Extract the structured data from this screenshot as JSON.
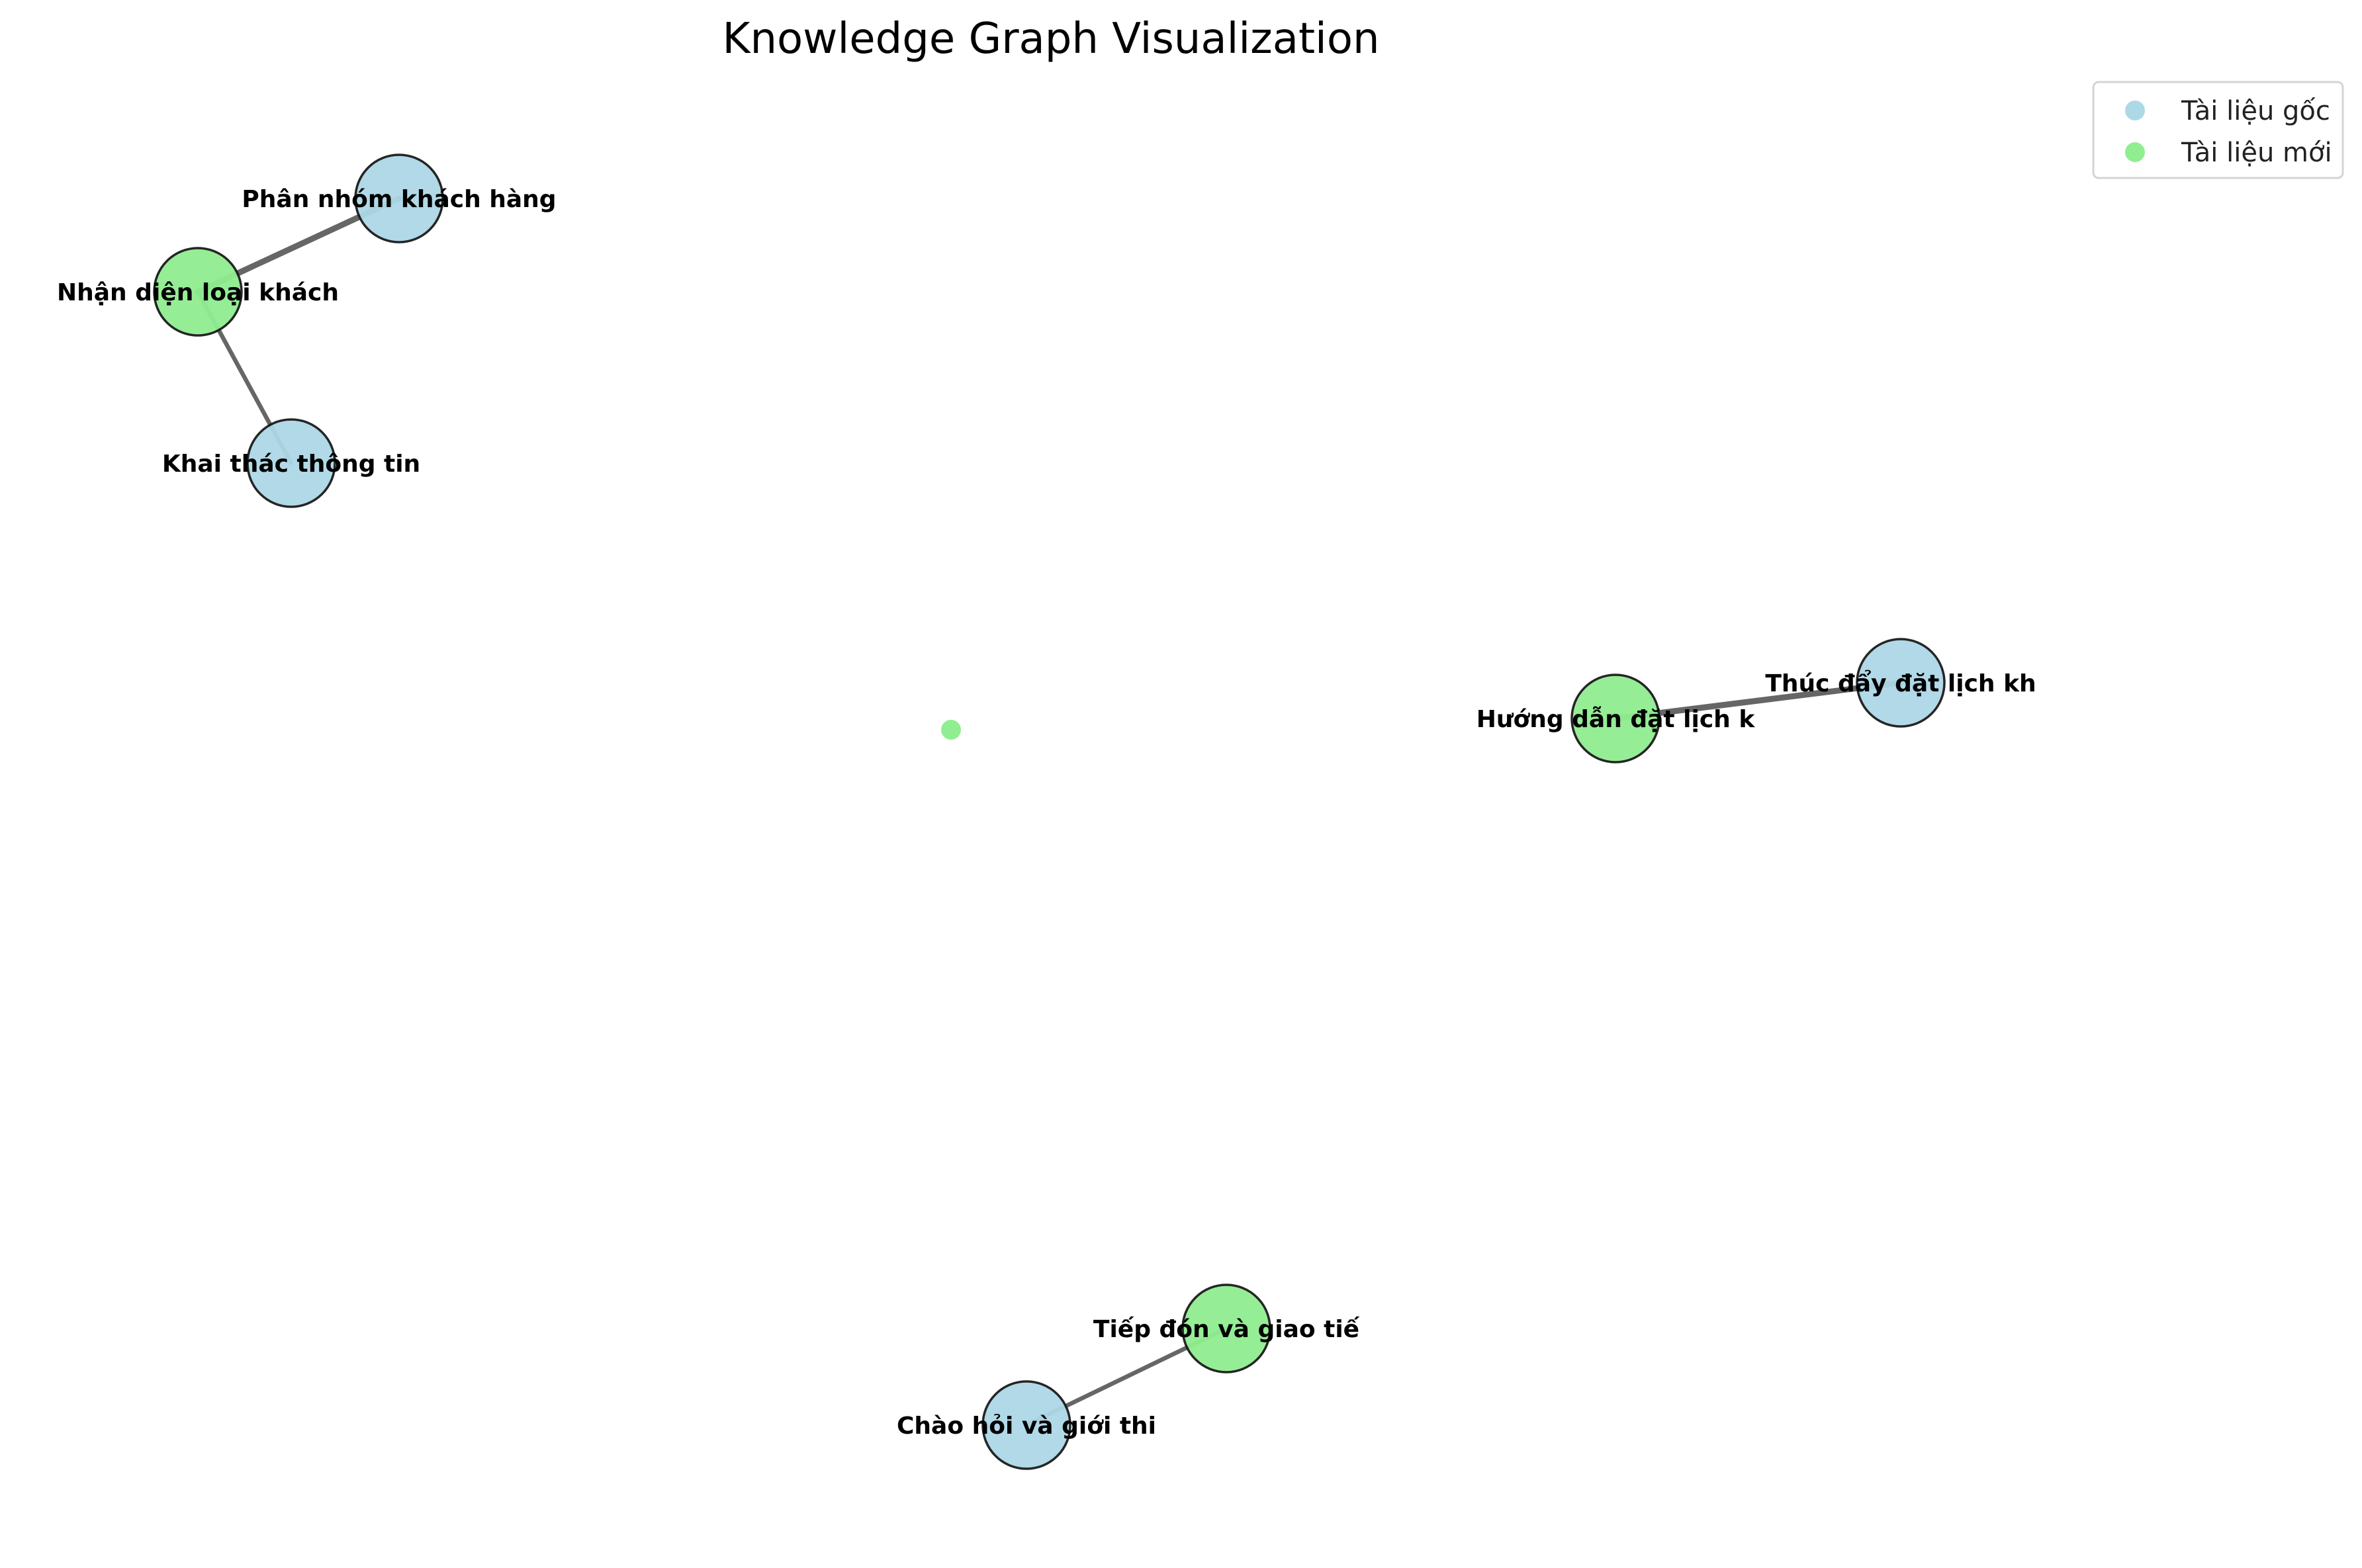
{
  "title": "Knowledge Graph Visualization",
  "colors": {
    "original": "#add8e6",
    "new": "#90ee90",
    "edge": "#666666"
  },
  "legend": {
    "items": [
      {
        "label": "Tài liệu gốc",
        "type": "original"
      },
      {
        "label": "Tài liệu mới",
        "type": "new"
      }
    ]
  },
  "graph": {
    "nodes": [
      {
        "id": "n1",
        "label": "Phân nhóm khách hàng",
        "type": "original"
      },
      {
        "id": "n2",
        "label": "Nhận diện loại khách",
        "type": "new"
      },
      {
        "id": "n3",
        "label": "Khai thác thông tin",
        "type": "original"
      },
      {
        "id": "n4",
        "label": "Hướng dẫn đặt lịch k",
        "type": "new"
      },
      {
        "id": "n5",
        "label": "Thúc đẩy đặt lịch kh",
        "type": "original"
      },
      {
        "id": "n6",
        "label": "",
        "type": "new",
        "small": true
      },
      {
        "id": "n7",
        "label": "Tiếp đón và giao tiế",
        "type": "new"
      },
      {
        "id": "n8",
        "label": "Chào hỏi và giới thi",
        "type": "original"
      }
    ],
    "edges": [
      {
        "source": "n2",
        "target": "n1",
        "weight": "heavy"
      },
      {
        "source": "n2",
        "target": "n3",
        "weight": "normal"
      },
      {
        "source": "n4",
        "target": "n5",
        "weight": "heavy"
      },
      {
        "source": "n8",
        "target": "n7",
        "weight": "normal"
      }
    ]
  }
}
